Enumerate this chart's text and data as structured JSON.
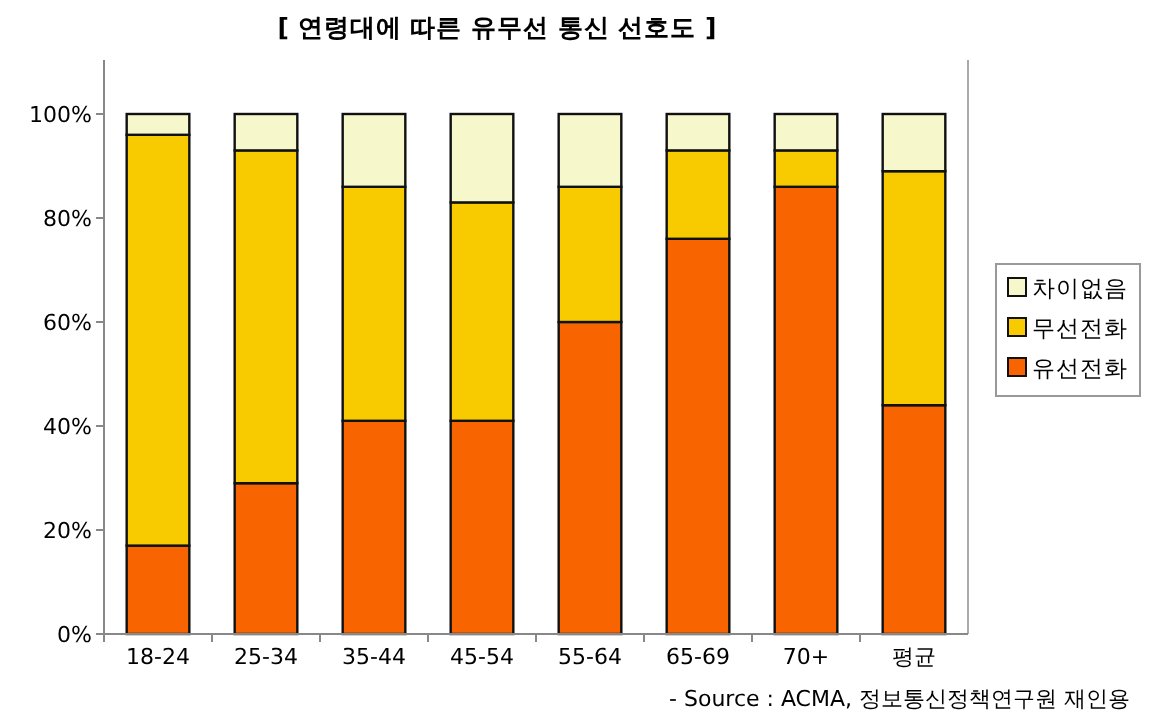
{
  "chart_data": {
    "type": "bar",
    "stacked": true,
    "title": "[ 연령대에 따른 유무선 통신 선호도 ]",
    "categories": [
      "18-24",
      "25-34",
      "35-44",
      "45-54",
      "55-64",
      "65-69",
      "70+",
      "평균"
    ],
    "series": [
      {
        "name": "유선전화",
        "color": "#f76400",
        "values": [
          17,
          29,
          41,
          41,
          60,
          76,
          86,
          44
        ]
      },
      {
        "name": "무선전화",
        "color": "#f7cb00",
        "values": [
          79,
          64,
          45,
          42,
          26,
          17,
          7,
          45
        ]
      },
      {
        "name": "차이없음",
        "color": "#f7f7cc",
        "values": [
          4,
          7,
          14,
          17,
          14,
          7,
          7,
          11
        ]
      }
    ],
    "ylim": [
      0,
      100
    ],
    "yticks": [
      {
        "value": 0,
        "label": "0%"
      },
      {
        "value": 20,
        "label": "20%"
      },
      {
        "value": 40,
        "label": "40%"
      },
      {
        "value": 60,
        "label": "60%"
      },
      {
        "value": 80,
        "label": "80%"
      },
      {
        "value": 100,
        "label": "100%"
      }
    ],
    "grid": false,
    "legend": "right",
    "annotations": [
      "- Source : ACMA, 정보통신정책연구원 재인용"
    ]
  }
}
